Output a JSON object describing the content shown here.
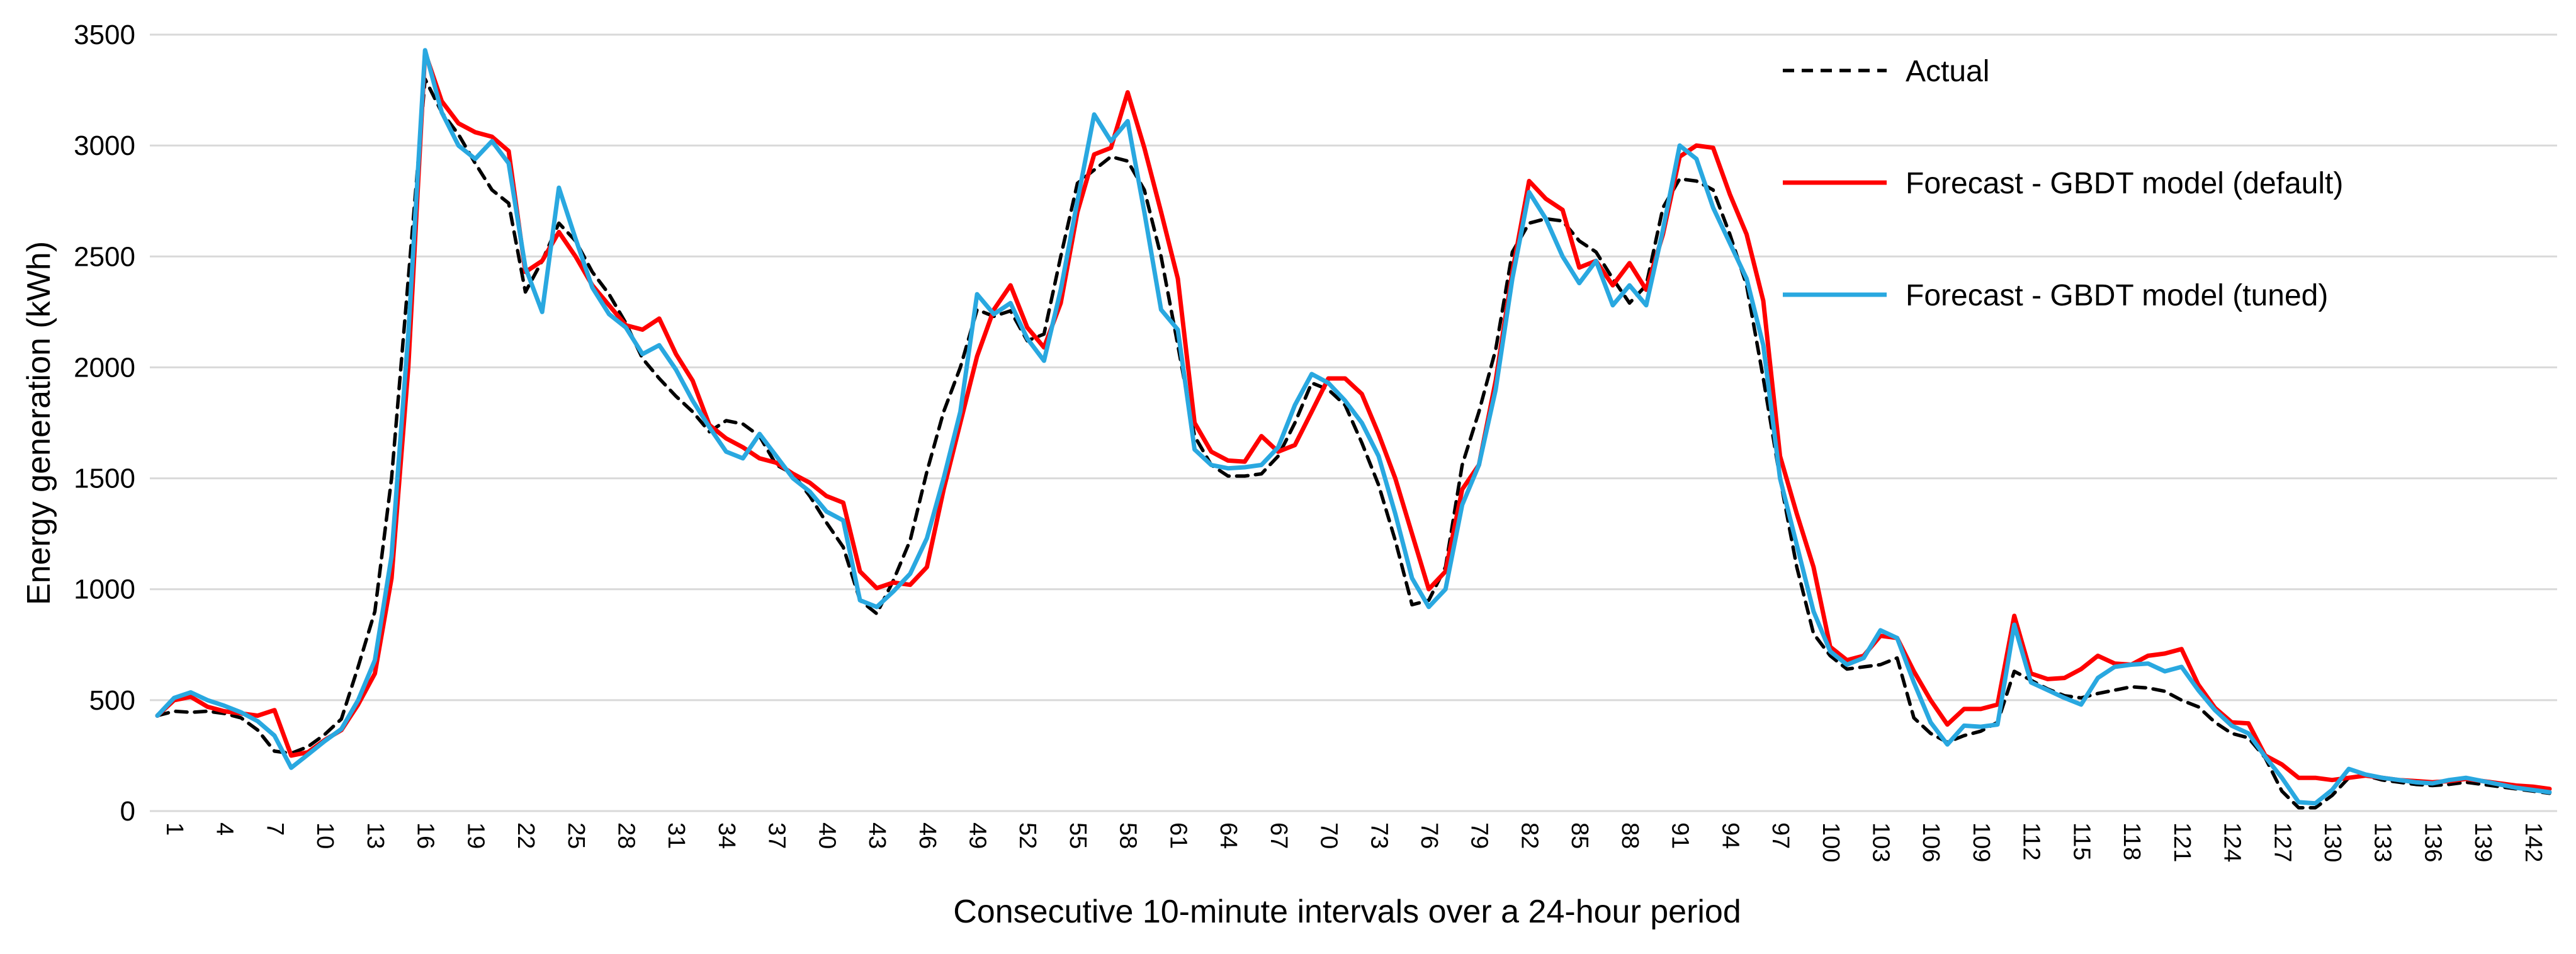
{
  "chart_data": {
    "type": "line",
    "title": "",
    "xlabel": "Consecutive 10-minute intervals over a 24-hour period",
    "ylabel": "Energy generation  (kWh)",
    "x_start": 1,
    "x_end": 144,
    "xtick_every": 3,
    "ylim": [
      0,
      3500
    ],
    "ytick_step": 500,
    "grid": "horizontal-only",
    "grid_color": "#D9D9D9",
    "axis_color": "#D9D9D9",
    "legend_position": "top-right",
    "series": [
      {
        "name": "Actual",
        "color": "#000000",
        "style": "dashed",
        "values": [
          430,
          450,
          445,
          450,
          440,
          420,
          365,
          270,
          260,
          290,
          345,
          415,
          650,
          900,
          1500,
          2400,
          3300,
          3150,
          3050,
          2920,
          2800,
          2740,
          2340,
          2480,
          2650,
          2570,
          2430,
          2330,
          2200,
          2040,
          1950,
          1870,
          1800,
          1710,
          1760,
          1745,
          1690,
          1560,
          1520,
          1420,
          1300,
          1190,
          950,
          890,
          1040,
          1220,
          1530,
          1800,
          2000,
          2260,
          2230,
          2255,
          2120,
          2150,
          2500,
          2830,
          2890,
          2950,
          2930,
          2800,
          2500,
          2100,
          1690,
          1560,
          1510,
          1510,
          1520,
          1600,
          1750,
          1930,
          1900,
          1830,
          1660,
          1470,
          1220,
          930,
          950,
          1100,
          1560,
          1800,
          2080,
          2520,
          2650,
          2670,
          2660,
          2570,
          2520,
          2400,
          2290,
          2370,
          2720,
          2850,
          2840,
          2800,
          2600,
          2370,
          1950,
          1500,
          1100,
          800,
          700,
          640,
          650,
          660,
          690,
          420,
          350,
          310,
          340,
          360,
          400,
          630,
          590,
          550,
          520,
          510,
          530,
          545,
          560,
          555,
          540,
          500,
          470,
          400,
          350,
          330,
          240,
          90,
          15,
          15,
          70,
          150,
          160,
          140,
          130,
          120,
          115,
          120,
          130,
          120,
          110,
          100,
          90,
          80
        ]
      },
      {
        "name": "Forecast - GBDT model (default)",
        "color": "#FF0000",
        "style": "solid",
        "values": [
          430,
          500,
          515,
          470,
          450,
          440,
          430,
          455,
          250,
          265,
          320,
          365,
          480,
          620,
          1050,
          2000,
          3420,
          3200,
          3100,
          3060,
          3040,
          2975,
          2430,
          2480,
          2610,
          2500,
          2370,
          2280,
          2190,
          2170,
          2220,
          2060,
          1940,
          1740,
          1680,
          1640,
          1590,
          1570,
          1520,
          1480,
          1420,
          1390,
          1080,
          1005,
          1030,
          1020,
          1100,
          1450,
          1750,
          2050,
          2260,
          2370,
          2180,
          2090,
          2290,
          2700,
          2960,
          2990,
          3240,
          2990,
          2700,
          2400,
          1750,
          1620,
          1580,
          1575,
          1690,
          1620,
          1650,
          1800,
          1950,
          1950,
          1880,
          1700,
          1500,
          1250,
          1000,
          1080,
          1450,
          1560,
          1940,
          2430,
          2840,
          2760,
          2710,
          2450,
          2480,
          2370,
          2470,
          2350,
          2600,
          2950,
          3000,
          2990,
          2780,
          2600,
          2300,
          1600,
          1340,
          1100,
          740,
          680,
          700,
          790,
          780,
          630,
          500,
          390,
          460,
          460,
          480,
          880,
          620,
          595,
          600,
          640,
          700,
          665,
          660,
          700,
          710,
          730,
          570,
          465,
          400,
          395,
          250,
          210,
          150,
          150,
          140,
          150,
          160,
          150,
          140,
          135,
          130,
          135,
          145,
          135,
          125,
          115,
          110,
          100
        ]
      },
      {
        "name": "Forecast - GBDT model (tuned)",
        "color": "#29A8E0",
        "style": "solid",
        "values": [
          430,
          510,
          535,
          500,
          475,
          445,
          405,
          340,
          195,
          255,
          315,
          370,
          500,
          680,
          1150,
          2150,
          3430,
          3150,
          3000,
          2940,
          3020,
          2920,
          2450,
          2250,
          2810,
          2580,
          2360,
          2240,
          2180,
          2060,
          2100,
          1990,
          1850,
          1730,
          1620,
          1590,
          1700,
          1600,
          1500,
          1440,
          1350,
          1310,
          950,
          920,
          990,
          1070,
          1230,
          1500,
          1800,
          2330,
          2240,
          2290,
          2130,
          2030,
          2350,
          2750,
          3140,
          3020,
          3110,
          2700,
          2260,
          2170,
          1630,
          1560,
          1545,
          1550,
          1560,
          1640,
          1830,
          1970,
          1930,
          1850,
          1750,
          1600,
          1340,
          1050,
          920,
          1000,
          1380,
          1560,
          1900,
          2400,
          2790,
          2670,
          2500,
          2380,
          2480,
          2280,
          2370,
          2280,
          2620,
          3000,
          2940,
          2720,
          2560,
          2400,
          2100,
          1500,
          1200,
          900,
          720,
          660,
          690,
          815,
          780,
          580,
          400,
          300,
          385,
          380,
          390,
          840,
          580,
          545,
          510,
          480,
          600,
          650,
          660,
          665,
          630,
          650,
          545,
          455,
          385,
          350,
          245,
          150,
          40,
          35,
          95,
          190,
          165,
          150,
          140,
          130,
          125,
          140,
          150,
          135,
          120,
          105,
          95,
          85
        ]
      }
    ]
  }
}
